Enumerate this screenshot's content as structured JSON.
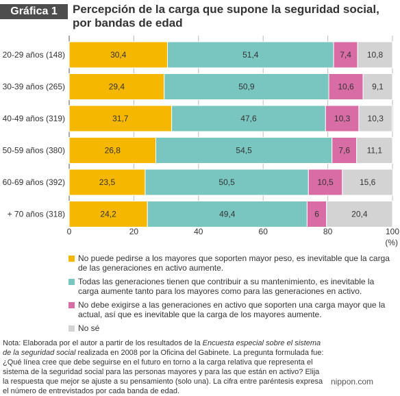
{
  "header": {
    "badge": "Gráfica 1",
    "title": "Percepción de la carga que supone la seguridad social, por bandas de edad"
  },
  "chart_data": {
    "type": "bar",
    "orientation": "horizontal",
    "stacked": true,
    "categories": [
      "20-29 años (148)",
      "30-39 años (265)",
      "40-49 años (319)",
      "50-59 años (380)",
      "60-69 años (392)",
      "+ 70 años (318)"
    ],
    "series": [
      {
        "name": "No puede pedirse a los mayores que soporten mayor peso, es inevitable que la carga de las generaciones en activo aumente.",
        "color": "#f5b700",
        "values": [
          30.4,
          29.4,
          31.7,
          26.8,
          23.5,
          24.2
        ],
        "labels": [
          "30,4",
          "29,4",
          "31,7",
          "26,8",
          "23,5",
          "24,2"
        ]
      },
      {
        "name": "Todas las generaciones tienen que contribuir a su mantenimiento, es inevitable la carga aumente tanto para los mayores como para las generaciones en activo.",
        "color": "#79c6c0",
        "values": [
          51.4,
          50.9,
          47.6,
          54.5,
          50.5,
          49.4
        ],
        "labels": [
          "51,4",
          "50,9",
          "47,6",
          "54,5",
          "50,5",
          "49,4"
        ]
      },
      {
        "name": "No debe exigirse a las generaciones en activo que soporten una carga mayor que la actual,  así que es inevitable que la carga de los mayores aumente.",
        "color": "#d86ca4",
        "values": [
          7.4,
          10.6,
          10.3,
          7.6,
          10.5,
          6
        ],
        "labels": [
          "7,4",
          "10,6",
          "10,3",
          "7,6",
          "10,5",
          "6"
        ]
      },
      {
        "name": "No sé",
        "color": "#d3d3d3",
        "values": [
          10.8,
          9.1,
          10.3,
          11.1,
          15.6,
          20.4
        ],
        "labels": [
          "10,8",
          "9,1",
          "10,3",
          "11,1",
          "15,6",
          "20,4"
        ]
      }
    ],
    "xlim": [
      0,
      100
    ],
    "xticks": [
      "0",
      "20",
      "40",
      "60",
      "80",
      "100"
    ],
    "xunit": "(%)",
    "grid": true
  },
  "note": {
    "p1": "Nota: Elaborada por el autor a partir de los resultados de la ",
    "italic": "Encuesta especial sobre el sistema de la seguridad social",
    "p2": " realizada en 2008 por la Oficina del Gabinete. La pregunta formulada fue: ¿Qué línea cree que debe seguirse en el futuro en torno a la carga relativa que representa el sistema de la seguridad social para las personas mayores y para las que están en activo? Elija la respuesta que mejor se ajuste a su pensamiento (solo una). La cifra entre paréntesis expresa el número de entrevistados por cada banda de edad."
  },
  "brand": "nippon.com"
}
